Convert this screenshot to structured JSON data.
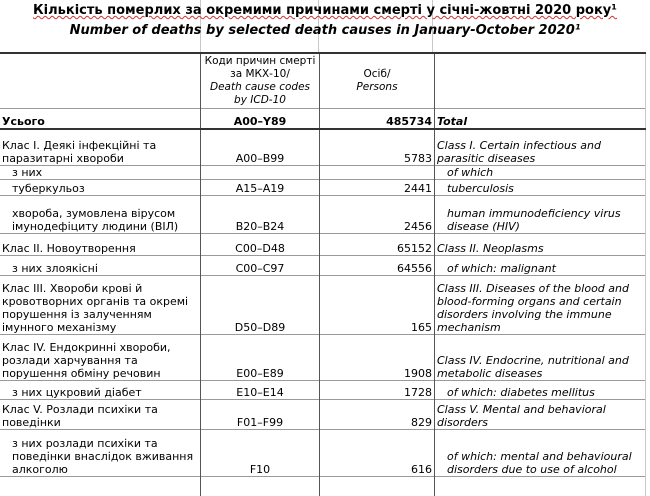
{
  "title_uk": "Кількість померлих за окремими причинами смерті у січні-жовтні 2020 року¹",
  "title_en": "Number of deaths by selected death causes in January-October 2020¹",
  "header": {
    "codes_uk": "Коди причин смерті за МКХ-10/",
    "codes_en": "Death cause codes by ICD-10",
    "persons_uk": "Осіб/",
    "persons_en": "Persons"
  },
  "rows": [
    {
      "uk": "Усього",
      "code": "A00–Y89",
      "value": "485734",
      "en": "Total"
    },
    {
      "uk": "Клас I. Деякі інфекційні та паразитарні хвороби",
      "code": "A00–B99",
      "value": "5783",
      "en": "Class I. Certain infectious and parasitic diseases"
    },
    {
      "uk": "з них",
      "code": "",
      "value": "",
      "en": "of which"
    },
    {
      "uk": "туберкульоз",
      "code": "A15–A19",
      "value": "2441",
      "en": "tuberculosis"
    },
    {
      "uk": "хвороба, зумовлена вірусом імунодефіциту людини (ВІЛ)",
      "code": "B20–B24",
      "value": "2456",
      "en": "human immunodeficiency virus disease (HIV)"
    },
    {
      "uk": "Клас II. Новоутворення",
      "code": "C00–D48",
      "value": "65152",
      "en": "Class II. Neoplasms"
    },
    {
      "uk": "з них злоякісні",
      "code": "C00–C97",
      "value": "64556",
      "en": "of which: malignant"
    },
    {
      "uk": "Клас III. Хвороби крові й кровотворних органів та окремі порушення із залученням імунного механізму",
      "code": "D50–D89",
      "value": "165",
      "en": "Class III. Diseases of the blood and blood-forming organs and certain disorders involving the immune mechanism"
    },
    {
      "uk": "Клас IV. Ендокринні хвороби, розлади харчування та порушення обміну речовин",
      "code": "E00–E89",
      "value": "1908",
      "en": "Class IV. Endocrine, nutritional and metabolic diseases"
    },
    {
      "uk": "з них цукровий діабет",
      "code": "E10–E14",
      "value": "1728",
      "en": "of which: diabetes mellitus"
    },
    {
      "uk": "Клас V. Розлади психіки та поведінки",
      "code": "F01–F99",
      "value": "829",
      "en": "Class V. Mental and behavioral disorders"
    },
    {
      "uk": "з них розлади психіки та поведінки внаслідок вживання алкоголю",
      "code": "F10",
      "value": "616",
      "en": "of which: mental and behavioural disorders due to use of alcohol"
    }
  ]
}
